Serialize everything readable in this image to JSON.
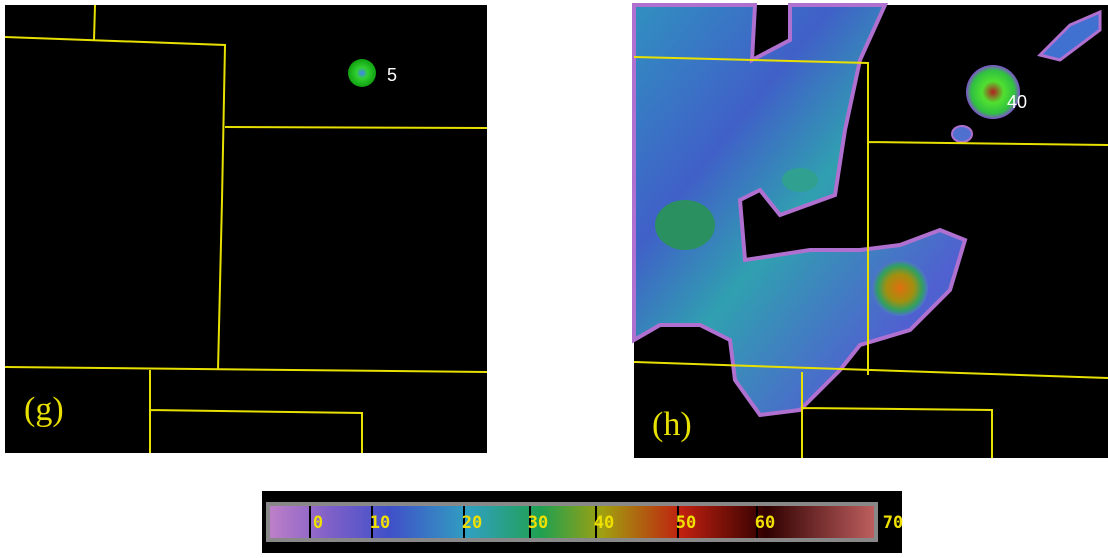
{
  "panels": [
    {
      "label": "(g)",
      "annotation": "5"
    },
    {
      "label": "(h)",
      "annotation": "40"
    }
  ],
  "colorbar": {
    "labels": [
      "0",
      "10",
      "20",
      "30",
      "40",
      "50",
      "60",
      "70"
    ]
  }
}
